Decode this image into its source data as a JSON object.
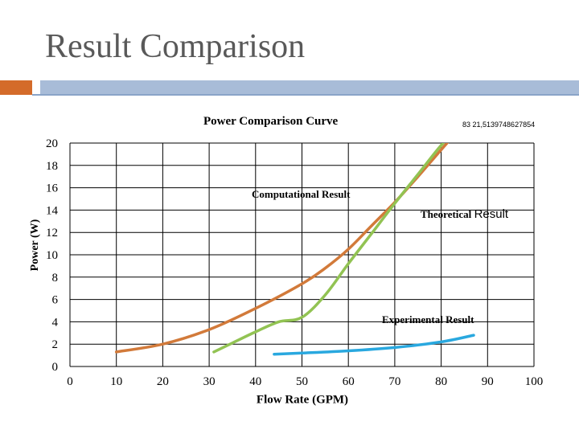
{
  "slide": {
    "title": "Result Comparison"
  },
  "chart_data": {
    "type": "line",
    "title": "Power Comparison Curve",
    "xlabel": "Flow Rate (GPM)",
    "ylabel": "Power (W)",
    "xlim": [
      0,
      100
    ],
    "ylim": [
      0,
      20
    ],
    "xticks": [
      "0",
      "10",
      "20",
      "30",
      "40",
      "50",
      "60",
      "70",
      "80",
      "90",
      "100"
    ],
    "yticks": [
      "0",
      "2",
      "4",
      "6",
      "8",
      "10",
      "12",
      "14",
      "16",
      "18",
      "20"
    ],
    "grid": true,
    "corner_note": "83  21,5139748627854",
    "series": [
      {
        "name": "Computational Result",
        "color": "#d27a3a",
        "x": [
          10,
          20,
          30,
          40,
          50,
          55,
          60,
          65,
          70,
          75,
          80,
          83
        ],
        "y": [
          1.3,
          2.0,
          3.3,
          5.2,
          7.4,
          8.8,
          10.5,
          12.6,
          14.7,
          17.0,
          19.4,
          20.8
        ]
      },
      {
        "name": "Theoretical Result",
        "color": "#92c353",
        "x": [
          31,
          35,
          40,
          45,
          50,
          55,
          60,
          65,
          70,
          75,
          80,
          84
        ],
        "y": [
          1.3,
          2.1,
          3.1,
          4.0,
          4.4,
          6.4,
          9.2,
          11.9,
          14.6,
          17.2,
          19.8,
          21.5
        ]
      },
      {
        "name": "Experimental Result",
        "color": "#29a8df",
        "x": [
          44,
          50,
          60,
          70,
          80,
          87
        ],
        "y": [
          1.1,
          1.2,
          1.4,
          1.7,
          2.2,
          2.8
        ]
      }
    ],
    "annotations": {
      "computational": "Computational Result",
      "theoretical_prefix": "Theoretical ",
      "theoretical_suffix": "Result",
      "experimental": "Experimental Result"
    }
  }
}
